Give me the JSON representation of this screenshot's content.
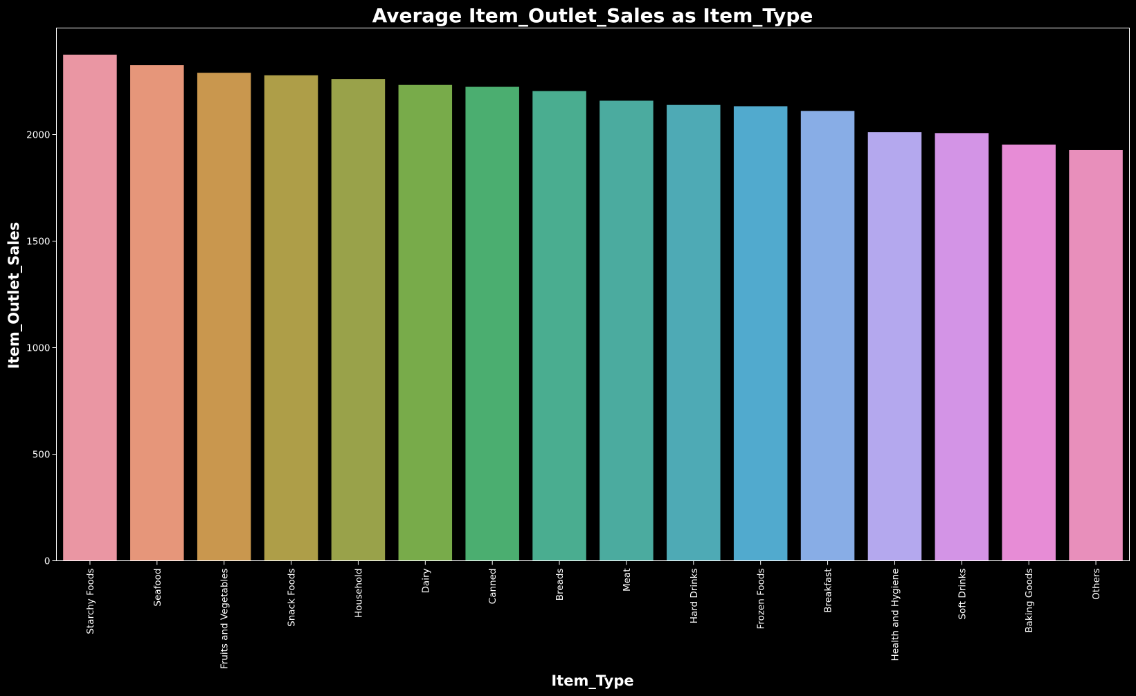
{
  "chart_data": {
    "type": "bar",
    "title": "Average Item_Outlet_Sales as Item_Type",
    "xlabel": "Item_Type",
    "ylabel": "Item_Outlet_Sales",
    "ylim": [
      0,
      2500
    ],
    "yticks": [
      0,
      500,
      1000,
      1500,
      2000
    ],
    "grid": false,
    "categories": [
      "Starchy Foods",
      "Seafood",
      "Fruits and Vegetables",
      "Snack Foods",
      "Household",
      "Dairy",
      "Canned",
      "Breads",
      "Meat",
      "Hard Drinks",
      "Frozen Foods",
      "Breakfast",
      "Health and Hygiene",
      "Soft Drinks",
      "Baking Goods",
      "Others"
    ],
    "values": [
      2375,
      2326,
      2290,
      2278,
      2261,
      2233,
      2224,
      2204,
      2159,
      2139,
      2133,
      2111,
      2011,
      2007,
      1953,
      1927
    ],
    "colors": [
      "#ea96a3",
      "#e6967a",
      "#c9974e",
      "#ae9e48",
      "#99a24a",
      "#78ab4a",
      "#4bae70",
      "#4aad90",
      "#4bab9f",
      "#4eaab5",
      "#51aace",
      "#88ade6",
      "#b4a8ee",
      "#d394e6",
      "#e78cd6",
      "#e88fbb"
    ],
    "background": "#000000",
    "foreground": "#ffffff"
  }
}
